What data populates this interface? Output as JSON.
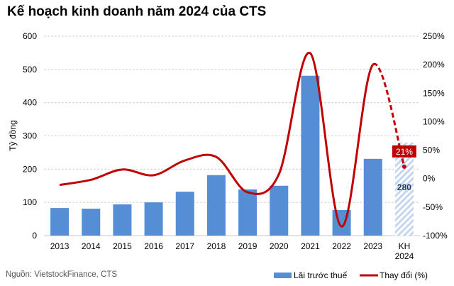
{
  "chart_data": {
    "type": "bar+line",
    "title": "Kế hoạch kinh doanh năm 2024 của CTS",
    "ylabel": "Tỷ đồng",
    "ylim": [
      0,
      600
    ],
    "yticks": [
      0,
      100,
      200,
      300,
      400,
      500,
      600
    ],
    "y2lim": [
      -100,
      250
    ],
    "y2ticks": [
      "-100%",
      "-50%",
      "0%",
      "50%",
      "100%",
      "150%",
      "200%",
      "250%"
    ],
    "grid": true,
    "legend_placement": "bottom-right",
    "categories": [
      "2013",
      "2014",
      "2015",
      "2016",
      "2017",
      "2018",
      "2019",
      "2020",
      "2021",
      "2022",
      "2023",
      "KH\n2024"
    ],
    "series": [
      {
        "name": "Lãi trước thuế",
        "type": "bar",
        "color": "#558ed5",
        "values": [
          83,
          81,
          94,
          100,
          132,
          182,
          139,
          150,
          481,
          77,
          231,
          280
        ],
        "planned_last": true
      },
      {
        "name": "Thay đổi (%)",
        "type": "line",
        "color": "#c00000",
        "values": [
          -11,
          -2,
          16,
          6,
          32,
          38,
          -24,
          8,
          220,
          -84,
          200,
          21
        ],
        "dashed_last": true
      }
    ],
    "annotations": {
      "plan_value": "280",
      "plan_change": "21%"
    }
  },
  "source": "Nguồn: VietstockFinance, CTS"
}
